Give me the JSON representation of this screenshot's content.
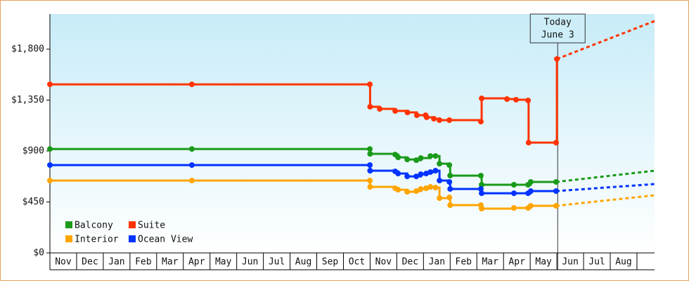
{
  "chart_data": {
    "type": "step-line",
    "xlim": [
      0,
      22.66
    ],
    "ylim": [
      0,
      2110
    ],
    "yticks": [
      {
        "value": 0,
        "label": "$0"
      },
      {
        "value": 450,
        "label": "$450"
      },
      {
        "value": 900,
        "label": "$900"
      },
      {
        "value": 1350,
        "label": "$1,350"
      },
      {
        "value": 1800,
        "label": "$1,800"
      }
    ],
    "xticks": [
      {
        "value": 0,
        "label": "Nov"
      },
      {
        "value": 1,
        "label": "Dec"
      },
      {
        "value": 2,
        "label": "Jan"
      },
      {
        "value": 3,
        "label": "Feb"
      },
      {
        "value": 4,
        "label": "Mar"
      },
      {
        "value": 5,
        "label": "Apr"
      },
      {
        "value": 6,
        "label": "May"
      },
      {
        "value": 7,
        "label": "Jun"
      },
      {
        "value": 8,
        "label": "Jul"
      },
      {
        "value": 9,
        "label": "Aug"
      },
      {
        "value": 10,
        "label": "Sep"
      },
      {
        "value": 11,
        "label": "Oct"
      },
      {
        "value": 12,
        "label": "Nov"
      },
      {
        "value": 13,
        "label": "Dec"
      },
      {
        "value": 14,
        "label": "Jan"
      },
      {
        "value": 15,
        "label": "Feb"
      },
      {
        "value": 16,
        "label": "Mar"
      },
      {
        "value": 17,
        "label": "Apr"
      },
      {
        "value": 18,
        "label": "May"
      },
      {
        "value": 19,
        "label": "Jun"
      },
      {
        "value": 20,
        "label": "Jul"
      },
      {
        "value": 21,
        "label": "Aug"
      }
    ],
    "grid": false,
    "legend": "lower left",
    "annotation": {
      "x": 19.03,
      "lines": [
        "Today",
        "June 3"
      ]
    },
    "series": [
      {
        "name": "Balcony",
        "color": "#1a9a1a",
        "x": [
          0,
          5.32,
          11.99,
          12.0,
          12.94,
          13.05,
          13.39,
          13.73,
          13.9,
          14.26,
          14.45,
          14.6,
          14.97,
          15.0,
          16.15,
          16.18,
          17.39,
          17.92,
          18.02,
          18.97
        ],
        "values": [
          918,
          918,
          918,
          875,
          869,
          844,
          825,
          819,
          838,
          856,
          856,
          788,
          776,
          683,
          683,
          602,
          602,
          602,
          627,
          627
        ],
        "forecast": {
          "x": [
            18.97,
            22.66
          ],
          "values": [
            627,
            726
          ]
        }
      },
      {
        "name": "Suite",
        "color": "#ff3300",
        "x": [
          0,
          5.32,
          11.99,
          12.0,
          12.36,
          12.94,
          13.4,
          13.75,
          14.08,
          14.12,
          14.39,
          14.6,
          14.97,
          16.15,
          16.18,
          17.13,
          17.47,
          17.92,
          17.94,
          18.97,
          19.0
        ],
        "values": [
          1489,
          1489,
          1489,
          1291,
          1272,
          1254,
          1241,
          1216,
          1216,
          1198,
          1185,
          1173,
          1173,
          1160,
          1365,
          1359,
          1353,
          1347,
          974,
          974,
          1713
        ],
        "forecast": {
          "x": [
            19.0,
            22.66
          ],
          "values": [
            1713,
            2048
          ]
        }
      },
      {
        "name": "Interior",
        "color": "#ffa500",
        "x": [
          0,
          5.32,
          11.99,
          12.0,
          12.94,
          13.05,
          13.39,
          13.73,
          13.9,
          14.1,
          14.26,
          14.45,
          14.6,
          14.97,
          15.0,
          16.15,
          16.18,
          17.39,
          17.92,
          18.02,
          18.97
        ],
        "values": [
          639,
          639,
          639,
          583,
          571,
          558,
          540,
          546,
          565,
          571,
          583,
          577,
          484,
          490,
          422,
          422,
          391,
          397,
          397,
          416,
          416
        ],
        "forecast": {
          "x": [
            18.97,
            22.66
          ],
          "values": [
            416,
            509
          ]
        }
      },
      {
        "name": "Ocean View",
        "color": "#0033ff",
        "x": [
          0,
          5.32,
          11.99,
          12.0,
          12.94,
          13.05,
          13.39,
          13.73,
          13.9,
          14.1,
          14.26,
          14.45,
          14.6,
          14.97,
          15.0,
          16.15,
          16.18,
          17.39,
          17.92,
          18.02,
          18.97
        ],
        "values": [
          776,
          776,
          776,
          726,
          720,
          701,
          676,
          676,
          695,
          701,
          714,
          726,
          639,
          627,
          565,
          565,
          527,
          527,
          527,
          546,
          546
        ],
        "forecast": {
          "x": [
            18.97,
            22.66
          ],
          "values": [
            546,
            608
          ]
        }
      }
    ]
  }
}
